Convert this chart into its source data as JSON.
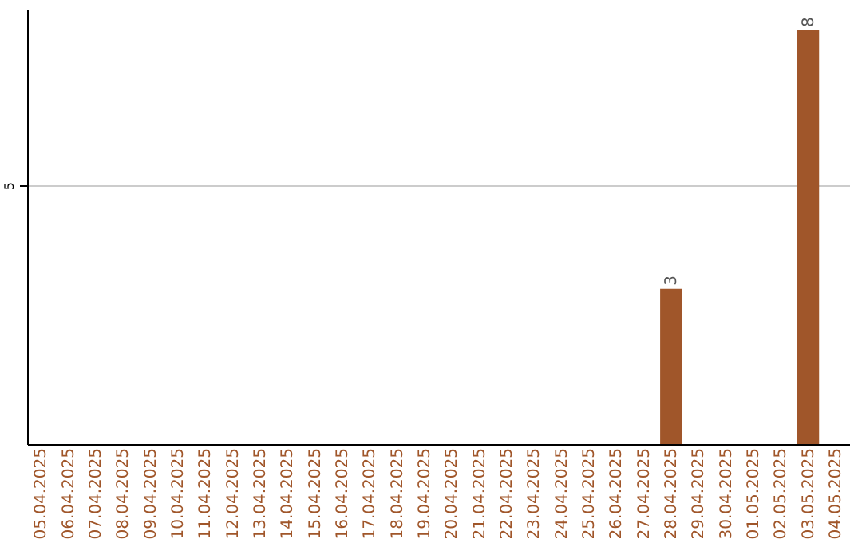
{
  "chart_data": {
    "type": "bar",
    "categories": [
      "05.04.2025",
      "06.04.2025",
      "07.04.2025",
      "08.04.2025",
      "09.04.2025",
      "10.04.2025",
      "11.04.2025",
      "12.04.2025",
      "13.04.2025",
      "14.04.2025",
      "15.04.2025",
      "16.04.2025",
      "17.04.2025",
      "18.04.2025",
      "19.04.2025",
      "20.04.2025",
      "21.04.2025",
      "22.04.2025",
      "23.04.2025",
      "24.04.2025",
      "25.04.2025",
      "26.04.2025",
      "27.04.2025",
      "28.04.2025",
      "29.04.2025",
      "30.04.2025",
      "01.05.2025",
      "02.05.2025",
      "03.05.2025",
      "04.05.2025"
    ],
    "values": [
      null,
      null,
      null,
      null,
      null,
      null,
      null,
      null,
      null,
      null,
      null,
      null,
      null,
      null,
      null,
      null,
      null,
      null,
      null,
      null,
      null,
      null,
      null,
      3,
      null,
      null,
      null,
      null,
      8,
      null
    ],
    "data_labels": true,
    "color": "#a0562a",
    "ylim": [
      0,
      8.4
    ],
    "yticks": [
      5
    ],
    "grid": "y"
  }
}
